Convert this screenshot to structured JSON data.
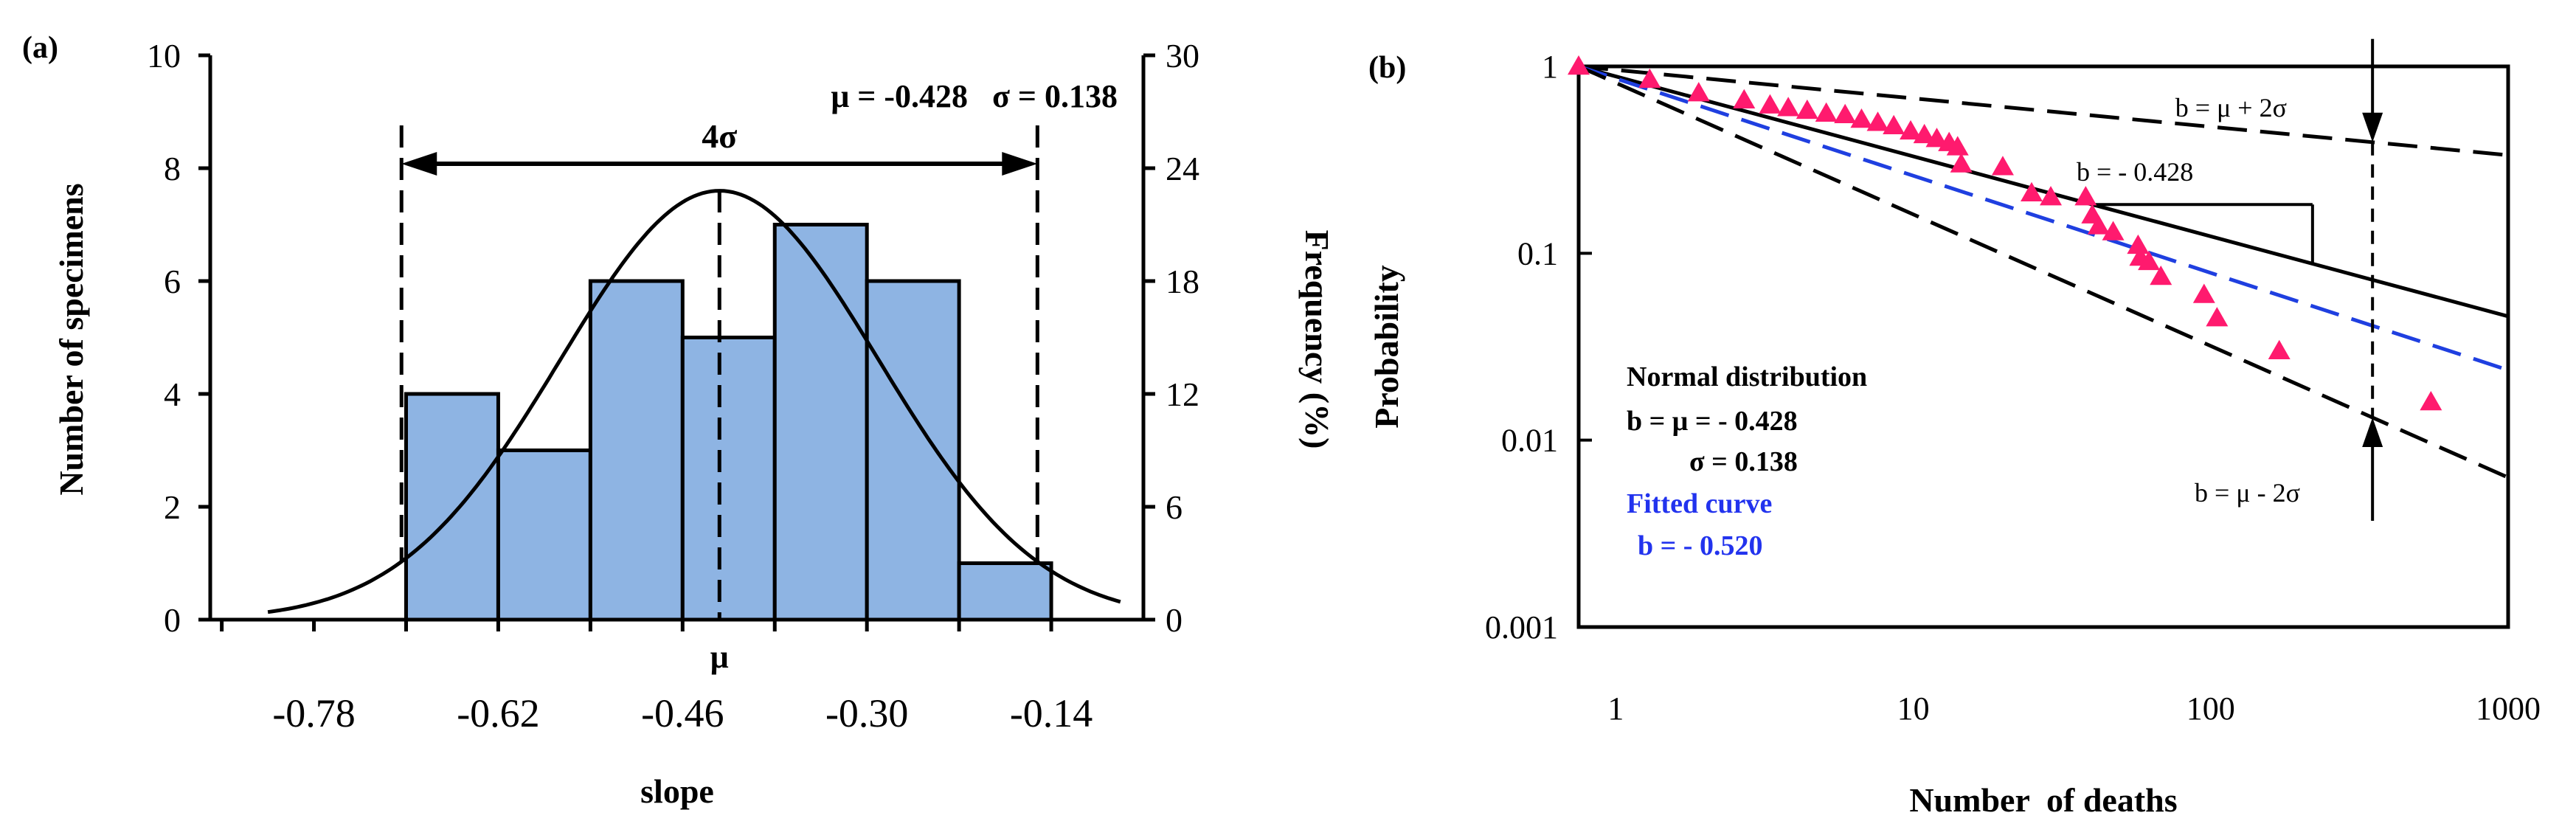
{
  "chart_data": [
    {
      "type": "bar",
      "panel_label": "(a)",
      "xlabel": "slope",
      "ylabel": "Number of specimens",
      "y2label": "Frequency (%)",
      "ylim": [
        0,
        10
      ],
      "y2lim": [
        0,
        30
      ],
      "yticks": [
        "0",
        "2",
        "4",
        "6",
        "8",
        "10"
      ],
      "y2ticks": [
        "0",
        "6",
        "12",
        "18",
        "24",
        "30"
      ],
      "xlim": [
        -0.87,
        -0.06
      ],
      "xtick_values": [
        -0.78,
        -0.62,
        -0.46,
        -0.3,
        -0.14
      ],
      "xtick_labels": [
        "-0.78",
        "-0.62",
        "-0.46",
        "-0.30",
        "-0.14"
      ],
      "bin_edges": [
        -0.7,
        -0.62,
        -0.54,
        -0.46,
        -0.38,
        -0.3,
        -0.22,
        -0.14
      ],
      "values": [
        4,
        3,
        6,
        5,
        7,
        6,
        1
      ],
      "bar_color": "#8eb4e3",
      "normal_curve": {
        "mean": -0.428,
        "sigma": 0.138,
        "peak": 7.6
      },
      "sigma_lines": [
        -0.704,
        -0.152
      ],
      "mean_line": -0.428,
      "annotations": {
        "mu_sigma": "μ = -0.428   σ = 0.138",
        "span": "4σ",
        "mu_label": "μ"
      }
    },
    {
      "type": "scatter",
      "panel_label": "(b)",
      "xlabel": "Number  of deaths",
      "ylabel": "Probability",
      "xscale": "log",
      "yscale": "log",
      "xlim": [
        0.75,
        1000
      ],
      "ylim": [
        0.001,
        1
      ],
      "xticks": [
        "1",
        "10",
        "100",
        "1000"
      ],
      "yticks": [
        "1",
        "0.1",
        "0.01",
        "0.001"
      ],
      "marker_color": "#ff1a6e",
      "points": [
        [
          0.75,
          1.0
        ],
        [
          1.3,
          0.85
        ],
        [
          1.9,
          0.72
        ],
        [
          2.7,
          0.66
        ],
        [
          3.3,
          0.62
        ],
        [
          3.8,
          0.6
        ],
        [
          4.4,
          0.58
        ],
        [
          5.1,
          0.56
        ],
        [
          5.9,
          0.55
        ],
        [
          6.7,
          0.52
        ],
        [
          7.6,
          0.5
        ],
        [
          8.6,
          0.48
        ],
        [
          9.8,
          0.45
        ],
        [
          10.9,
          0.43
        ],
        [
          12.0,
          0.41
        ],
        [
          13.2,
          0.39
        ],
        [
          14.1,
          0.37
        ],
        [
          14.5,
          0.3
        ],
        [
          20.0,
          0.29
        ],
        [
          25.0,
          0.21
        ],
        [
          29.0,
          0.2
        ],
        [
          38.0,
          0.2
        ],
        [
          40.0,
          0.16
        ],
        [
          42.0,
          0.14
        ],
        [
          47.0,
          0.13
        ],
        [
          57.0,
          0.11
        ],
        [
          58.0,
          0.095
        ],
        [
          62.0,
          0.09
        ],
        [
          68.0,
          0.075
        ],
        [
          95.0,
          0.06
        ],
        [
          105.0,
          0.045
        ],
        [
          170.0,
          0.03
        ],
        [
          550.0,
          0.016
        ]
      ],
      "lines": [
        {
          "name": "b = μ + 2σ",
          "slope": -0.152,
          "style": "dashed",
          "color": "#000000"
        },
        {
          "name": "b = - 0.428",
          "slope": -0.428,
          "style": "solid",
          "color": "#000000"
        },
        {
          "name": "Fitted curve b = - 0.520",
          "slope": -0.52,
          "style": "dashed",
          "color": "#1f3fe0"
        },
        {
          "name": "b = μ - 2σ",
          "slope": -0.704,
          "style": "dashed",
          "color": "#000000"
        }
      ],
      "vertical_marker_x": 350,
      "annotations": {
        "upper": "b = μ + 2σ",
        "mid": "b = - 0.428",
        "lower": "b = μ - 2σ",
        "legend_title": "Normal distribution",
        "legend_mu": "b = μ = - 0.428",
        "legend_sigma": "σ = 0.138",
        "fitted_title": "Fitted curve",
        "fitted_b": "b = - 0.520"
      }
    }
  ]
}
